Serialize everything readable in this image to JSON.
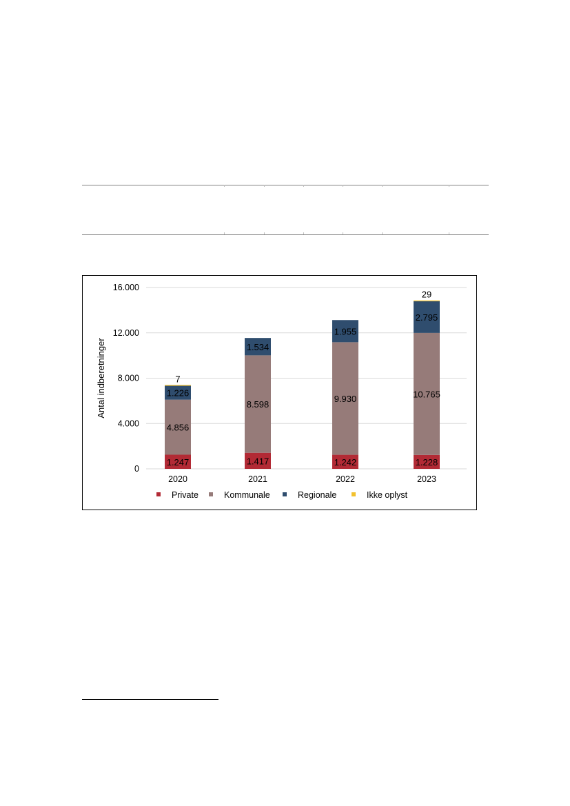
{
  "chart_data": {
    "type": "bar",
    "stacked": true,
    "categories": [
      "2020",
      "2021",
      "2022",
      "2023"
    ],
    "ylabel": "Antal indberetninger",
    "ylim": [
      0,
      16000
    ],
    "yticks": [
      0,
      4000,
      8000,
      12000,
      16000
    ],
    "ytick_labels": [
      "0",
      "4.000",
      "8.000",
      "12.000",
      "16.000"
    ],
    "grid": true,
    "legend_position": "bottom",
    "series": [
      {
        "name": "Private",
        "color": "#b22a35",
        "values": [
          1247,
          1417,
          1242,
          1228
        ],
        "labels": [
          "1.247",
          "1.417",
          "1.242",
          "1.228"
        ]
      },
      {
        "name": "Kommunale",
        "color": "#967b79",
        "values": [
          4856,
          8598,
          9930,
          10765
        ],
        "labels": [
          "4.856",
          "8.598",
          "9.930",
          "10.765"
        ]
      },
      {
        "name": "Regionale",
        "color": "#2f4d6e",
        "values": [
          1226,
          1534,
          1955,
          2795
        ],
        "labels": [
          "1.226",
          "1.534",
          "1.955",
          "2.795"
        ]
      },
      {
        "name": "Ikke oplyst",
        "color": "#f2c12e",
        "values": [
          7,
          0,
          0,
          29
        ],
        "labels": [
          "7",
          "",
          "",
          "29"
        ]
      }
    ]
  }
}
